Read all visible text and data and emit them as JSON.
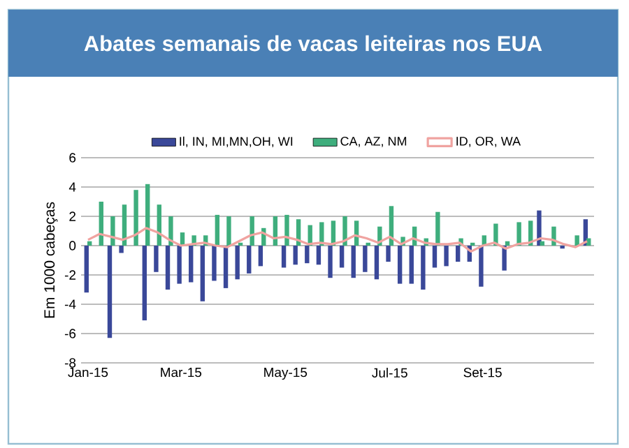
{
  "chart_data": {
    "type": "bar",
    "title": "Abates semanais de vacas leiteiras nos EUA",
    "ylabel": "Em 1000 cabeças",
    "categories": [
      "Jan-15",
      null,
      null,
      null,
      null,
      null,
      null,
      null,
      "Mar-15",
      null,
      null,
      null,
      null,
      null,
      null,
      null,
      null,
      "May-15",
      null,
      null,
      null,
      null,
      null,
      null,
      null,
      null,
      "Jul-15",
      null,
      null,
      null,
      null,
      null,
      null,
      null,
      "Set-15",
      null,
      null,
      null,
      null,
      null,
      null,
      null,
      null,
      null
    ],
    "series": [
      {
        "name": "Il, IN, MI,MN,OH, WI",
        "color": "#3a4899",
        "values": [
          -3.2,
          null,
          -6.3,
          -0.5,
          null,
          -5.1,
          -1.8,
          -3.0,
          -2.6,
          -2.5,
          -3.8,
          -2.4,
          -2.9,
          -2.3,
          -1.9,
          -1.4,
          null,
          -1.5,
          -1.3,
          -1.2,
          -1.3,
          -2.2,
          -1.5,
          -2.2,
          -1.8,
          -2.3,
          -1.1,
          -2.6,
          -2.6,
          -3.0,
          -1.5,
          -1.4,
          -1.1,
          -1.1,
          -2.8,
          null,
          -1.7,
          null,
          null,
          2.4,
          null,
          -0.2,
          null,
          1.8
        ]
      },
      {
        "name": "CA, AZ, NM",
        "color": "#3fae7d",
        "values": [
          0.3,
          3.0,
          2.0,
          2.8,
          3.8,
          4.2,
          2.8,
          2.0,
          0.9,
          0.7,
          0.7,
          2.1,
          2.0,
          0.2,
          2.0,
          1.2,
          2.0,
          2.1,
          1.8,
          1.4,
          1.6,
          1.7,
          2.0,
          1.7,
          0.2,
          1.3,
          2.7,
          0.6,
          1.3,
          0.5,
          2.3,
          null,
          0.5,
          0.2,
          0.7,
          1.5,
          0.3,
          1.6,
          1.7,
          0.3,
          1.3,
          null,
          0.7,
          0.5
        ]
      },
      {
        "name": "ID, OR, WA",
        "type": "line",
        "color": "#f0a3a0",
        "line_style": "solid",
        "values": [
          0.4,
          0.8,
          0.6,
          0.4,
          0.7,
          1.2,
          0.9,
          0.4,
          0.0,
          0.1,
          0.2,
          0.0,
          -0.1,
          0.3,
          0.7,
          0.9,
          0.5,
          0.6,
          0.4,
          0.1,
          0.2,
          0.1,
          0.3,
          0.7,
          0.5,
          0.2,
          0.6,
          0.1,
          0.5,
          0.2,
          0.1,
          0.1,
          0.2,
          -0.4,
          0.0,
          0.2,
          -0.2,
          0.1,
          0.2,
          0.5,
          0.4,
          0.1,
          -0.1,
          0.3
        ]
      }
    ],
    "ylim": [
      -8,
      6
    ],
    "yticks": [
      -8,
      -6,
      -4,
      -2,
      0,
      2,
      4,
      6
    ],
    "grid": "y",
    "legend": "top",
    "marker": "none"
  }
}
